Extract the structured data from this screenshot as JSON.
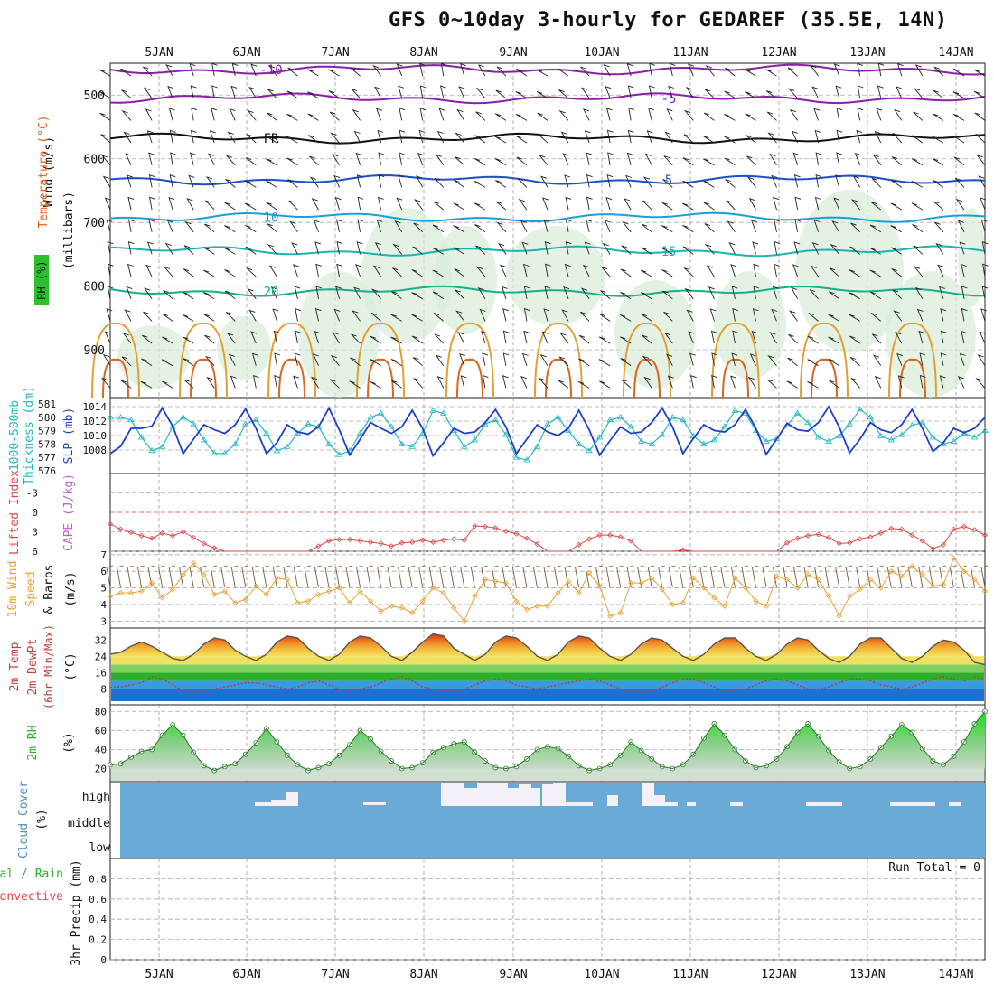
{
  "chart_data": {
    "type": "meteogram",
    "title": "GFS 0~10day 3-hourly for GEDAREF (35.5E, 14N)",
    "dates": [
      "5JAN",
      "6JAN",
      "7JAN",
      "8JAN",
      "9JAN",
      "10JAN",
      "11JAN",
      "12JAN",
      "13JAN",
      "14JAN"
    ],
    "run_total_label": "Run Total = 0",
    "panels": [
      {
        "id": "upper_air",
        "labels": [
          "Wind (m/s)",
          "Temperature (°C)",
          "RH (%)",
          "(millibars)"
        ],
        "yticks": [
          500,
          600,
          700,
          800,
          900
        ],
        "ylim": [
          450,
          975
        ],
        "isotherm_labels": [
          "-10",
          "-5",
          "FR",
          "5",
          "10",
          "15",
          "20"
        ],
        "isotherms": [
          {
            "label": "-10",
            "level": 460,
            "color": "#8b1fa9"
          },
          {
            "label": "-5",
            "level": 505,
            "color": "#8b1fa9"
          },
          {
            "label": "FR",
            "level": 568,
            "color": "#111111"
          },
          {
            "label": "5",
            "level": 633,
            "color": "#1f4fc8"
          },
          {
            "label": "10",
            "level": 692,
            "color": "#1aa0d8"
          },
          {
            "label": "15",
            "level": 745,
            "color": "#1ab5b0"
          },
          {
            "label": "20",
            "level": 808,
            "color": "#16b08a"
          }
        ]
      },
      {
        "id": "slp_thickness",
        "labels": [
          "1000-500mb",
          "Thickness (dm)",
          "SLP (mb)"
        ],
        "thickness_ticks": [
          581,
          580,
          579,
          578,
          577,
          576
        ],
        "slp_ticks": [
          1014,
          1012,
          1010,
          1008
        ],
        "slp_ylim": [
          1005.5,
          1014.5
        ],
        "slp": [
          1007.5,
          1008.5,
          1011,
          1011,
          1011.3,
          1013.8,
          1011.3,
          1007.5,
          1009.5,
          1011.5,
          1010.8,
          1010.3,
          1011.5,
          1013.7,
          1011,
          1007.5,
          1009,
          1011.5,
          1010.5,
          1010.2,
          1011.2,
          1013.8,
          1010.8,
          1007.3,
          1009.5,
          1011.8,
          1011,
          1010.3,
          1011.2,
          1013.5,
          1011,
          1007.2,
          1009,
          1011,
          1010.3,
          1010.5,
          1011.8,
          1013.6,
          1011.2,
          1007.5,
          1009.5,
          1011.5,
          1010.5,
          1010,
          1011,
          1013.5,
          1010.8,
          1007.3,
          1009.3,
          1011.2,
          1010.3,
          1010.5,
          1011.8,
          1013.8,
          1011.2,
          1007.5,
          1009.6,
          1011.5,
          1010.7,
          1010.5,
          1011.5,
          1013.6,
          1011,
          1007.4,
          1009.5,
          1011.7,
          1010.8,
          1010.6,
          1011.8,
          1014,
          1011.2,
          1007.6,
          1009.5,
          1011.8,
          1010.8,
          1010.4,
          1011.5,
          1013.6,
          1011,
          1007.8,
          1009,
          1011,
          1010.4,
          1011,
          1012.5
        ],
        "thickness": [
          580,
          580,
          579.8,
          578.5,
          577.5,
          577.8,
          579.3,
          580,
          579.5,
          578.3,
          577.3,
          577.3,
          578,
          579.5,
          579.8,
          578.8,
          577.5,
          577.8,
          578.8,
          579.5,
          579.3,
          578,
          577.2,
          577.5,
          578.8,
          580,
          580.3,
          579.3,
          578,
          577.8,
          578.8,
          580.5,
          580.3,
          579,
          577.8,
          578.3,
          579.5,
          579.8,
          578.7,
          577,
          576.8,
          577.8,
          579.5,
          580,
          579,
          578,
          577.5,
          578.5,
          579.8,
          580,
          579.3,
          578.2,
          578,
          578.7,
          580,
          579.8,
          578.6,
          578,
          578.3,
          579.3,
          580.5,
          580.3,
          579,
          578.2,
          578.4,
          579.4,
          580.3,
          579.6,
          578.5,
          578.2,
          578.6,
          579.5,
          580.6,
          580,
          578.6,
          578.3,
          578.7,
          579.4,
          579.6,
          578.5,
          578,
          578.2,
          578.8,
          578.5,
          579
        ]
      },
      {
        "id": "lifted_index",
        "labels": [
          "Lifted Index",
          "CAPE (J/kg)"
        ],
        "yticks": [
          "-3",
          "0",
          "3",
          "6"
        ],
        "ylim": [
          -6,
          6
        ],
        "lifted_index": [
          1.8,
          2.6,
          3.1,
          3.6,
          4.0,
          3.2,
          3.6,
          3.0,
          3.9,
          4.8,
          5.5,
          6.1,
          6.5,
          6.5,
          6.5,
          6.5,
          6.5,
          6.5,
          6.5,
          6.5,
          5.2,
          4.4,
          4.2,
          4.2,
          4.4,
          4.6,
          4.8,
          5.2,
          4.7,
          4.6,
          4.3,
          4.6,
          4.3,
          4.1,
          4.3,
          2.1,
          2.2,
          2.4,
          2.9,
          3.3,
          4.0,
          4.9,
          6.5,
          6.5,
          6.5,
          5.0,
          4.1,
          3.5,
          3.5,
          3.8,
          4.4,
          6.5,
          6.5,
          6.5,
          6.5,
          5.8,
          6.5,
          6.5,
          6.5,
          6.5,
          6.5,
          6.5,
          6.5,
          6.5,
          6.5,
          4.7,
          4.0,
          3.6,
          3.4,
          3.9,
          4.8,
          4.7,
          4.1,
          3.8,
          3.2,
          2.5,
          2.6,
          3.5,
          4.4,
          5.6,
          5.0,
          2.6,
          2.2,
          2.7,
          3.5
        ],
        "cape_visible": false
      },
      {
        "id": "wind10m",
        "labels": [
          "10m Wind",
          "Speed",
          "& Barbs",
          "(m/s)"
        ],
        "yticks": [
          3,
          4,
          5,
          6,
          7
        ],
        "ylim": [
          2.8,
          7.1
        ],
        "speed": [
          4.5,
          4.7,
          4.7,
          4.8,
          5.3,
          4.4,
          4.9,
          5.8,
          6.5,
          5.8,
          4.6,
          4.8,
          4.1,
          4.3,
          5.1,
          4.6,
          5.6,
          5.5,
          4.1,
          4.2,
          4.6,
          4.8,
          5.0,
          4.1,
          4.8,
          4.2,
          3.6,
          3.9,
          3.8,
          3.5,
          4.2,
          5.0,
          4.7,
          3.8,
          3.0,
          4.5,
          5.5,
          5.4,
          5.3,
          4.2,
          3.7,
          3.9,
          3.9,
          4.7,
          5.4,
          4.7,
          5.9,
          5.1,
          3.3,
          3.5,
          5.3,
          5.3,
          5.6,
          4.9,
          4.0,
          4.1,
          5.6,
          5.0,
          4.4,
          3.9,
          5.6,
          5.0,
          4.2,
          3.9,
          5.7,
          5.5,
          5.0,
          5.8,
          5.5,
          4.5,
          3.3,
          4.5,
          4.9,
          5.5,
          5.0,
          6.0,
          5.7,
          6.3,
          5.8,
          5.1,
          5.2,
          6.8,
          6.0,
          5.5,
          4.8
        ],
        "dewline_note": "speed shown in orange; barbs above"
      },
      {
        "id": "temp2m",
        "labels": [
          "2m Temp",
          "2m DewPt",
          "(6hr Min/Max)",
          "(°C)"
        ],
        "yticks": [
          8,
          16,
          24,
          32
        ],
        "ylim": [
          2,
          37
        ],
        "temp": [
          25,
          26,
          29,
          31,
          29,
          26,
          23,
          22,
          25,
          30,
          33,
          32,
          27,
          24,
          22,
          25,
          31,
          34,
          33,
          28,
          24,
          22,
          25,
          31,
          34,
          33,
          29,
          24,
          22,
          26,
          31,
          35,
          34,
          28,
          25,
          22,
          25,
          31,
          34,
          33,
          29,
          24,
          22,
          25,
          31,
          34,
          33,
          28,
          24,
          22,
          25,
          30,
          33,
          32,
          28,
          24,
          22,
          25,
          30,
          33,
          33,
          28,
          24,
          22,
          25,
          30,
          33,
          32,
          27,
          23,
          21,
          24,
          30,
          33,
          33,
          28,
          23,
          21,
          24,
          29,
          32,
          31,
          27,
          21,
          20
        ],
        "dewpoint": [
          9,
          9,
          10,
          11,
          14,
          13,
          10,
          7,
          6,
          7,
          8,
          9,
          10,
          11,
          11,
          10,
          9,
          8,
          9,
          11,
          12,
          10,
          8,
          7,
          8,
          9,
          11,
          13,
          14,
          12,
          9,
          8,
          7,
          7,
          8,
          10,
          12,
          13,
          12,
          10,
          9,
          8,
          9,
          10,
          11,
          12,
          13,
          12,
          10,
          8,
          7,
          6,
          7,
          9,
          11,
          13,
          13,
          11,
          9,
          7,
          7,
          8,
          10,
          12,
          13,
          12,
          10,
          8,
          8,
          9,
          11,
          13,
          13,
          12,
          10,
          9,
          8,
          9,
          11,
          13,
          14,
          13,
          12,
          14,
          13
        ]
      },
      {
        "id": "rh2m",
        "labels": [
          "2m RH",
          "(%)"
        ],
        "yticks": [
          20,
          40,
          60,
          80
        ],
        "ylim": [
          10,
          85
        ],
        "rh": [
          24,
          25,
          32,
          38,
          40,
          55,
          66,
          55,
          37,
          23,
          18,
          22,
          25,
          35,
          47,
          62,
          48,
          34,
          24,
          18,
          21,
          25,
          34,
          45,
          60,
          51,
          38,
          28,
          20,
          21,
          26,
          37,
          42,
          46,
          48,
          37,
          28,
          21,
          20,
          22,
          30,
          40,
          43,
          41,
          33,
          23,
          18,
          20,
          24,
          34,
          48,
          39,
          30,
          22,
          20,
          24,
          35,
          52,
          67,
          55,
          40,
          28,
          21,
          23,
          30,
          43,
          58,
          67,
          54,
          39,
          27,
          20,
          22,
          30,
          42,
          54,
          66,
          58,
          41,
          28,
          24,
          33,
          48,
          67,
          80
        ]
      },
      {
        "id": "cloud_cover",
        "labels": [
          "Cloud Cover",
          "(%)"
        ],
        "levels": [
          "high",
          "middle",
          "low"
        ]
      },
      {
        "id": "precip",
        "labels": [
          "Total / Rain",
          "Convective",
          "3hr Precip (mm)"
        ],
        "yticks": [
          "0",
          "0.2",
          "0.4",
          "0.6",
          "0.8"
        ],
        "ylim": [
          0,
          1
        ],
        "total": 0,
        "rain": 0,
        "convective": 0
      }
    ]
  },
  "colors": {
    "purple": "#8b1fa9",
    "blue_slp": "#1f3fc8",
    "cyan_thickness": "#22b8c0",
    "red_li": "#e04646",
    "orange_wind": "#e8a030",
    "green_rh": "#2cb02c",
    "cloud_blue": "#6aaad6"
  }
}
